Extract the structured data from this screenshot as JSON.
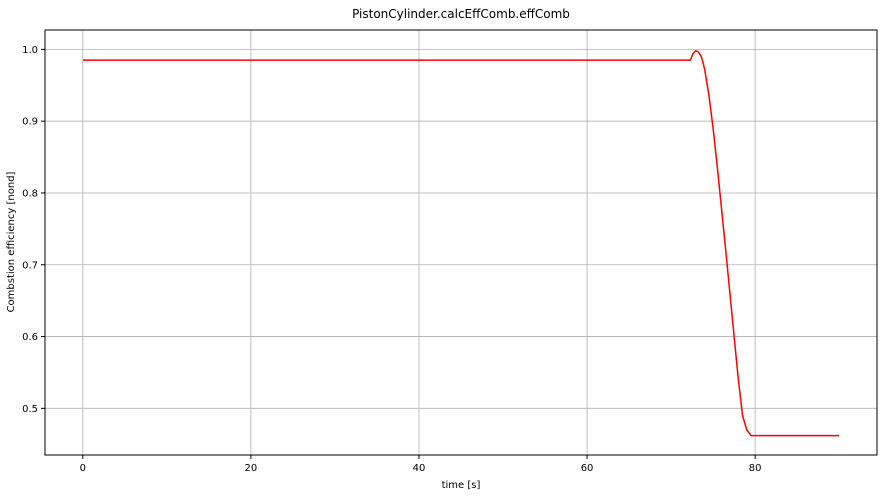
{
  "chart_data": {
    "type": "line",
    "title": "PistonCylinder.calcEffComb.effComb",
    "xlabel": "time [s]",
    "ylabel": "Combstion efficiency [nond]",
    "xlim": [
      -4.5,
      94.5
    ],
    "ylim": [
      0.435,
      1.027
    ],
    "xticks": [
      0,
      20,
      40,
      60,
      80
    ],
    "yticks": [
      0.5,
      0.6,
      0.7,
      0.8,
      0.9,
      1.0
    ],
    "xtick_labels": [
      "0",
      "20",
      "40",
      "60",
      "80"
    ],
    "ytick_labels": [
      "0.5",
      "0.6",
      "0.7",
      "0.8",
      "0.9",
      "1.0"
    ],
    "grid": true,
    "series": [
      {
        "color": "#ff0000",
        "x": [
          0,
          72.3,
          72.6,
          72.9,
          73.2,
          73.6,
          74.0,
          74.5,
          75.0,
          75.5,
          76.0,
          76.5,
          77.0,
          77.5,
          78.0,
          78.5,
          79.0,
          79.5,
          80.0,
          90.0
        ],
        "y": [
          0.985,
          0.985,
          0.994,
          0.998,
          0.997,
          0.99,
          0.972,
          0.936,
          0.89,
          0.836,
          0.778,
          0.72,
          0.66,
          0.6,
          0.54,
          0.49,
          0.47,
          0.462,
          0.462,
          0.462
        ]
      }
    ]
  }
}
